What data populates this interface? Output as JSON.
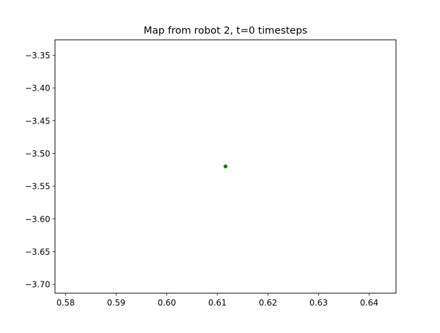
{
  "chart_data": {
    "type": "scatter",
    "title": "Map from robot 2, t=0 timesteps",
    "xlabel": "",
    "ylabel": "",
    "xlim": [
      0.5779,
      0.6453
    ],
    "ylim": [
      -3.7135,
      -3.3265
    ],
    "xticks": [
      {
        "value": 0.58,
        "label": "0.58"
      },
      {
        "value": 0.59,
        "label": "0.59"
      },
      {
        "value": 0.6,
        "label": "0.60"
      },
      {
        "value": 0.61,
        "label": "0.61"
      },
      {
        "value": 0.62,
        "label": "0.62"
      },
      {
        "value": 0.63,
        "label": "0.63"
      },
      {
        "value": 0.64,
        "label": "0.64"
      }
    ],
    "yticks": [
      {
        "value": -3.35,
        "label": "−3.35"
      },
      {
        "value": -3.4,
        "label": "−3.40"
      },
      {
        "value": -3.45,
        "label": "−3.45"
      },
      {
        "value": -3.5,
        "label": "−3.50"
      },
      {
        "value": -3.55,
        "label": "−3.55"
      },
      {
        "value": -3.6,
        "label": "−3.60"
      },
      {
        "value": -3.65,
        "label": "−3.65"
      },
      {
        "value": -3.7,
        "label": "−3.70"
      }
    ],
    "grid": false,
    "legend": "none",
    "series": [
      {
        "color": "#008000",
        "points": [
          {
            "x": 0.6116,
            "y": -3.5199
          }
        ]
      }
    ]
  }
}
